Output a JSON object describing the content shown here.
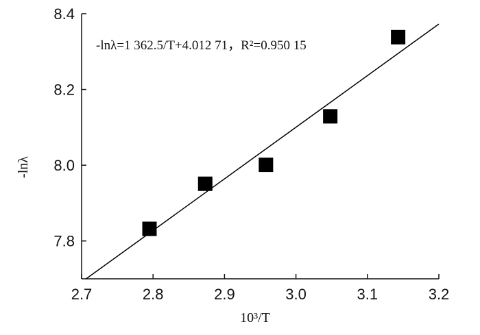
{
  "chart_data": {
    "type": "scatter",
    "title": "",
    "xlabel": "10³/T",
    "ylabel": "-lnλ",
    "xlim": [
      2.7,
      3.2
    ],
    "ylim": [
      7.7,
      8.4
    ],
    "x_ticks": [
      2.7,
      2.8,
      2.9,
      3.0,
      3.1,
      3.2
    ],
    "y_ticks": [
      7.8,
      8.0,
      8.2,
      8.4
    ],
    "x_tick_labels": [
      "2.7",
      "2.8",
      "2.9",
      "3.0",
      "3.1",
      "3.2"
    ],
    "y_tick_labels": [
      "7.8",
      "8.0",
      "8.2",
      "8.4"
    ],
    "points": [
      {
        "x": 2.795,
        "y": 7.832
      },
      {
        "x": 2.873,
        "y": 7.951
      },
      {
        "x": 2.958,
        "y": 8.001
      },
      {
        "x": 3.048,
        "y": 8.129
      },
      {
        "x": 3.143,
        "y": 8.338
      }
    ],
    "marker": "square",
    "marker_color": "#000000",
    "fit_line": {
      "slope": 1.3625,
      "intercept": 4.01271,
      "color": "#000000"
    },
    "annotation": "-lnλ=1 362.5/T+4.012 71，R²=0.950 15",
    "grid": false
  }
}
